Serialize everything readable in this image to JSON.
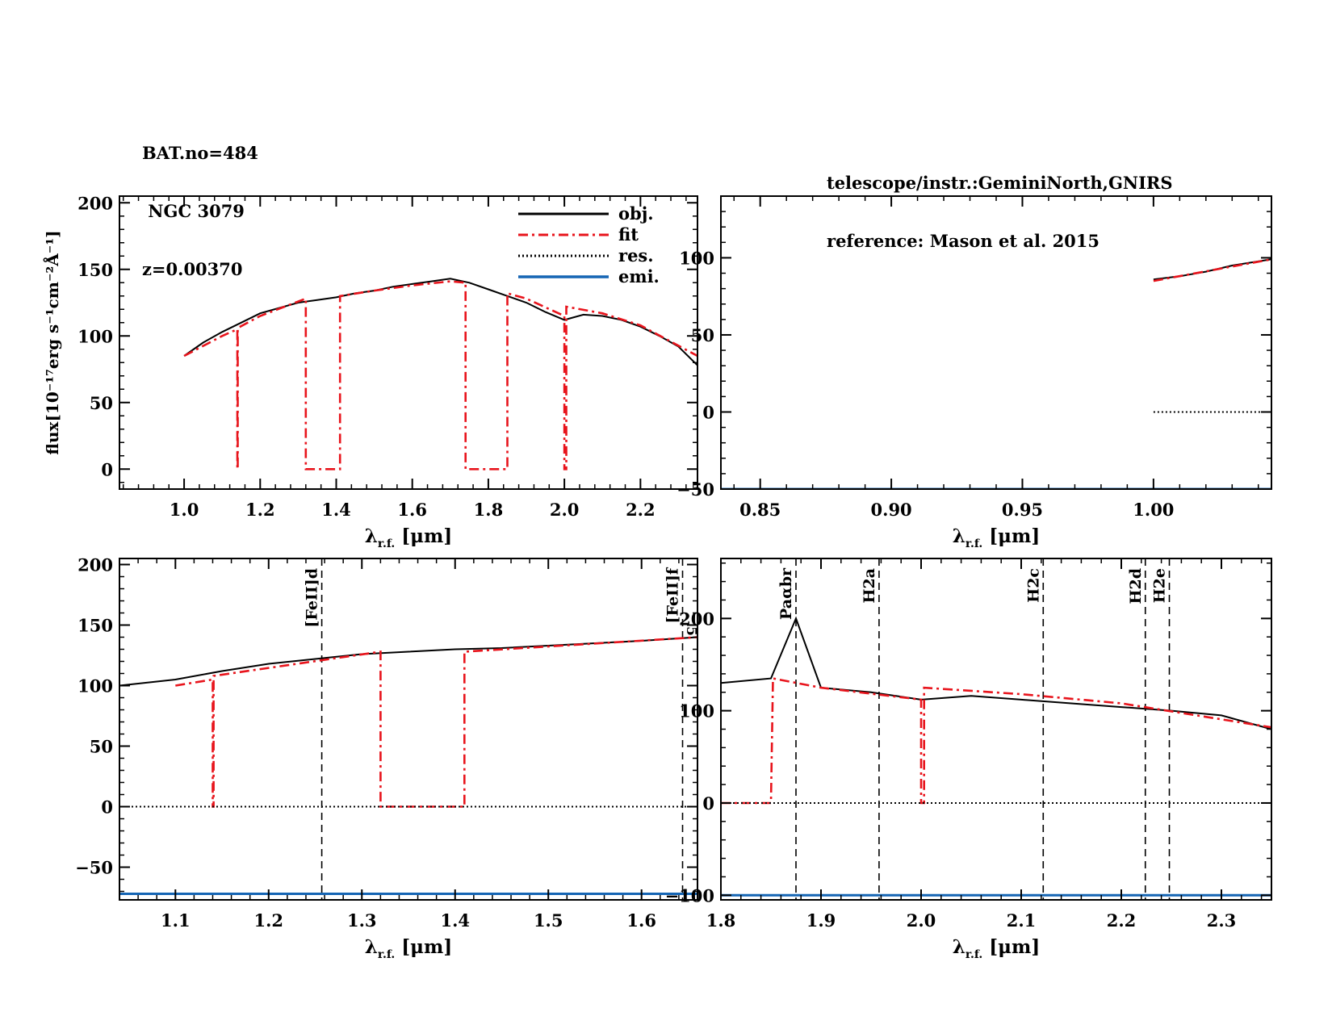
{
  "header": {
    "left": [
      "BAT.no=484",
      " NGC 3079",
      "z=0.00370"
    ],
    "right": [
      "telescope/instr.:GeminiNorth,GNIRS",
      "reference: Mason et al. 2015"
    ]
  },
  "colors": {
    "obj": "#000000",
    "fit": "#e8141c",
    "res": "#000000",
    "emi": "#1565b4",
    "axis": "#000000"
  },
  "chart_data": [
    {
      "id": "full-spectrum",
      "type": "line",
      "xlabel": "λr.f. [μm]",
      "ylabel": "flux[10⁻¹⁷erg s⁻¹cm⁻²Å⁻¹]",
      "xlim": [
        0.83,
        2.35
      ],
      "ylim": [
        -15,
        205
      ],
      "xticks": [
        1.0,
        1.2,
        1.4,
        1.6,
        1.8,
        2.0,
        2.2
      ],
      "xtick_labels": [
        "1.0",
        "1.2",
        "1.4",
        "1.6",
        "1.8",
        "2.0",
        "2.2"
      ],
      "yticks": [
        0,
        50,
        100,
        150,
        200
      ],
      "ytick_labels": [
        "0",
        "50",
        "100",
        "150",
        "200"
      ],
      "legend": {
        "position": "top-right",
        "entries": [
          "obj.",
          "fit",
          "res.",
          "emi."
        ]
      },
      "series": [
        {
          "name": "obj.",
          "style": "solid",
          "x": [
            1.0,
            1.05,
            1.1,
            1.15,
            1.2,
            1.25,
            1.3,
            1.35,
            1.4,
            1.45,
            1.5,
            1.55,
            1.6,
            1.65,
            1.7,
            1.75,
            1.8,
            1.85,
            1.9,
            1.95,
            2.0,
            2.05,
            2.1,
            2.15,
            2.2,
            2.25,
            2.3,
            2.35
          ],
          "y": [
            85,
            95,
            103,
            110,
            117,
            121,
            125,
            127,
            129,
            132,
            134,
            137,
            139,
            141,
            143,
            140,
            135,
            130,
            125,
            118,
            112,
            116,
            115,
            112,
            107,
            100,
            92,
            78
          ]
        },
        {
          "name": "fit",
          "style": "dashdot",
          "x": [
            1.0,
            1.1,
            1.14,
            1.14,
            1.141,
            1.141,
            1.2,
            1.32,
            1.32,
            1.41,
            1.41,
            1.5,
            1.6,
            1.7,
            1.74,
            1.74,
            1.85,
            1.85,
            1.9,
            2.0,
            2.0,
            2.005,
            2.005,
            2.1,
            2.2,
            2.35
          ],
          "y": [
            85,
            100,
            105,
            0,
            0,
            106,
            115,
            128,
            0,
            0,
            130,
            134,
            138,
            141,
            140,
            0,
            0,
            132,
            128,
            115,
            0,
            0,
            122,
            117,
            108,
            85
          ]
        }
      ]
    },
    {
      "id": "short-wavelength",
      "type": "line",
      "xlabel": "λr.f. [μm]",
      "xlim": [
        0.835,
        1.045
      ],
      "ylim": [
        -50,
        140
      ],
      "xticks": [
        0.85,
        0.9,
        0.95,
        1.0
      ],
      "xtick_labels": [
        "0.85",
        "0.90",
        "0.95",
        "1.00"
      ],
      "yticks": [
        -50,
        0,
        50,
        100
      ],
      "ytick_labels": [
        "−50",
        "0",
        "50",
        "100"
      ],
      "series": [
        {
          "name": "obj.",
          "style": "solid",
          "x": [
            1.0,
            1.01,
            1.02,
            1.03,
            1.045
          ],
          "y": [
            86,
            88,
            91,
            95,
            99
          ]
        },
        {
          "name": "fit",
          "style": "dashdot",
          "x": [
            1.0,
            1.045
          ],
          "y": [
            85,
            99
          ]
        },
        {
          "name": "res.",
          "style": "dotted",
          "x": [
            1.0,
            1.045
          ],
          "y": [
            0,
            0
          ]
        },
        {
          "name": "emi.",
          "style": "solid",
          "x": [
            0.835,
            1.045
          ],
          "y": [
            -50,
            -50
          ]
        }
      ]
    },
    {
      "id": "j-band",
      "type": "line",
      "xlabel": "λr.f. [μm]",
      "xlim": [
        1.04,
        1.66
      ],
      "ylim": [
        -77,
        205
      ],
      "xticks": [
        1.1,
        1.2,
        1.3,
        1.4,
        1.5,
        1.6
      ],
      "xtick_labels": [
        "1.1",
        "1.2",
        "1.3",
        "1.4",
        "1.5",
        "1.6"
      ],
      "yticks": [
        -50,
        0,
        50,
        100,
        150,
        200
      ],
      "ytick_labels": [
        "−50",
        "0",
        "50",
        "100",
        "150",
        "200"
      ],
      "lines": [
        {
          "label": "[FeII]d",
          "x": 1.257
        },
        {
          "label": "[FeII]f",
          "x": 1.644
        }
      ],
      "extra_label": "5",
      "series": [
        {
          "name": "obj.",
          "style": "solid",
          "x": [
            1.04,
            1.1,
            1.15,
            1.2,
            1.25,
            1.3,
            1.35,
            1.4,
            1.45,
            1.5,
            1.55,
            1.6,
            1.66
          ],
          "y": [
            100,
            105,
            112,
            118,
            122,
            126,
            128,
            130,
            131,
            133,
            135,
            137,
            140
          ]
        },
        {
          "name": "fit",
          "style": "dashdot",
          "x": [
            1.1,
            1.14,
            1.14,
            1.141,
            1.141,
            1.32,
            1.32,
            1.41,
            1.41,
            1.66
          ],
          "y": [
            100,
            105,
            0,
            0,
            108,
            128,
            0,
            0,
            128,
            140
          ]
        },
        {
          "name": "res.",
          "style": "dotted",
          "x": [
            1.04,
            1.66
          ],
          "y": [
            0,
            0
          ]
        },
        {
          "name": "emi.",
          "style": "solid",
          "x": [
            1.04,
            1.66
          ],
          "y": [
            -72,
            -72
          ]
        }
      ]
    },
    {
      "id": "k-band",
      "type": "line",
      "xlabel": "λr.f. [μm]",
      "xlim": [
        1.8,
        2.35
      ],
      "ylim": [
        -105,
        265
      ],
      "xticks": [
        1.8,
        1.9,
        2.0,
        2.1,
        2.2,
        2.3
      ],
      "xtick_labels": [
        "1.8",
        "1.9",
        "2.0",
        "2.1",
        "2.2",
        "2.3"
      ],
      "yticks": [
        -100,
        0,
        100,
        200
      ],
      "ytick_labels": [
        "−100",
        "0",
        "100",
        "200"
      ],
      "lines": [
        {
          "label": "Paαbr",
          "x": 1.875
        },
        {
          "label": "H2a",
          "x": 1.958
        },
        {
          "label": "H2c",
          "x": 2.122
        },
        {
          "label": "H2d",
          "x": 2.224
        },
        {
          "label": "H2e",
          "x": 2.248
        }
      ],
      "series": [
        {
          "name": "obj.",
          "style": "solid",
          "x": [
            1.8,
            1.85,
            1.875,
            1.9,
            1.95,
            2.0,
            2.05,
            2.1,
            2.15,
            2.2,
            2.25,
            2.3,
            2.35
          ],
          "y": [
            130,
            135,
            200,
            125,
            120,
            112,
            116,
            112,
            108,
            104,
            100,
            95,
            80
          ]
        },
        {
          "name": "fit",
          "style": "dashdot",
          "x": [
            1.8,
            1.85,
            1.85,
            1.852,
            1.9,
            2.0,
            2.0,
            2.003,
            2.003,
            2.1,
            2.2,
            2.35
          ],
          "y": [
            0,
            0,
            0,
            135,
            125,
            112,
            0,
            0,
            125,
            118,
            108,
            82
          ]
        },
        {
          "name": "res.",
          "style": "dotted",
          "x": [
            1.8,
            2.35
          ],
          "y": [
            0,
            0
          ]
        },
        {
          "name": "emi.",
          "style": "solid",
          "x": [
            1.8,
            2.35
          ],
          "y": [
            -100,
            -100
          ]
        }
      ]
    }
  ]
}
